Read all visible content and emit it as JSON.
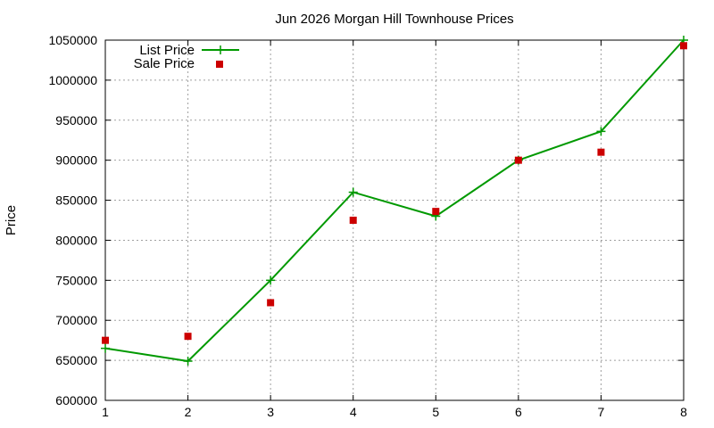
{
  "chart_data": {
    "type": "line",
    "title": "Jun 2026 Morgan Hill Townhouse Prices",
    "xlabel": "",
    "ylabel": "Price",
    "x": [
      1,
      2,
      3,
      4,
      5,
      6,
      7,
      8
    ],
    "xlim": [
      1,
      8
    ],
    "ylim": [
      600000,
      1050000
    ],
    "xticks": [
      "1",
      "2",
      "3",
      "4",
      "5",
      "6",
      "7",
      "8"
    ],
    "yticks": [
      "600000",
      "650000",
      "700000",
      "750000",
      "800000",
      "850000",
      "900000",
      "950000",
      "1000000",
      "1050000"
    ],
    "grid": true,
    "legend_position": "top-left",
    "series": [
      {
        "name": "List Price",
        "style": "line-with-plus-markers",
        "color": "#009900",
        "values": [
          665000,
          649000,
          750000,
          860000,
          830000,
          900000,
          936000,
          1050000
        ]
      },
      {
        "name": "Sale Price",
        "style": "square-markers",
        "color": "#cc0000",
        "values": [
          675000,
          680000,
          722000,
          825000,
          836000,
          900000,
          910000,
          1043000
        ]
      }
    ]
  }
}
